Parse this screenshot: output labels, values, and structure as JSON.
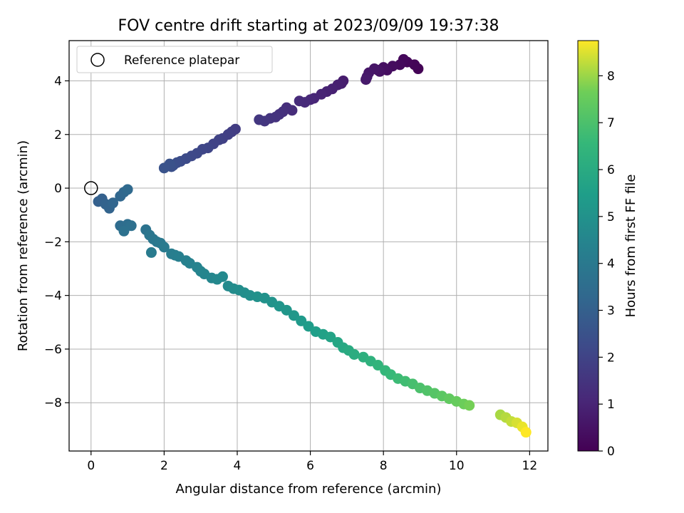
{
  "chart_data": {
    "type": "scatter",
    "title": "FOV centre drift starting at 2023/09/09 19:37:38",
    "xlabel": "Angular distance from reference (arcmin)",
    "ylabel": "Rotation from reference (arcmin)",
    "xlim": [
      -0.6,
      12.5
    ],
    "ylim": [
      -9.8,
      5.5
    ],
    "xticks": [
      0,
      2,
      4,
      6,
      8,
      10,
      12
    ],
    "yticks": [
      -8,
      -6,
      -4,
      -2,
      0,
      2,
      4
    ],
    "grid": true,
    "legend": {
      "placement": "top-left",
      "entries": [
        "Reference platepar"
      ]
    },
    "reference_point": {
      "x": 0,
      "y": 0,
      "label": "Reference platepar"
    },
    "colorbar": {
      "label": "Hours from first FF file",
      "colormap": "viridis",
      "range": [
        0,
        8.75
      ],
      "ticks": [
        0,
        1,
        2,
        3,
        4,
        5,
        6,
        7,
        8
      ]
    },
    "series": [
      {
        "x": [
          8.95,
          8.85,
          8.65,
          8.55,
          8.45,
          8.25,
          8.1,
          8.0,
          7.9,
          7.85,
          7.75,
          7.6,
          7.55,
          7.52,
          6.9,
          6.85,
          6.75,
          6.6,
          6.45,
          6.3,
          6.1,
          6.0,
          5.85,
          5.7,
          5.5,
          5.35,
          5.25,
          5.15,
          5.05,
          4.9,
          4.75,
          4.6,
          3.95,
          3.85,
          3.75,
          3.6,
          3.5,
          3.35,
          3.2,
          3.05,
          2.9,
          2.75,
          2.6,
          2.45,
          2.35,
          2.25,
          2.2,
          2.15,
          2.0,
          0.2,
          0.3,
          0.4,
          0.5,
          0.6,
          0.8,
          0.9,
          1.0,
          0.8,
          0.9,
          1.0,
          1.1,
          0.9,
          1.5,
          1.6,
          1.7,
          1.8,
          1.9,
          2.0,
          1.65,
          2.2,
          2.3,
          2.4,
          2.6,
          2.7,
          2.9,
          3.0,
          3.1,
          3.3,
          3.45,
          3.6,
          3.75,
          3.9,
          4.05,
          4.2,
          4.35,
          4.55,
          4.75,
          4.95,
          5.15,
          5.35,
          5.55,
          5.75,
          5.95,
          6.15,
          6.35,
          6.55,
          6.75,
          6.9,
          7.05,
          7.2,
          7.45,
          7.65,
          7.85,
          8.05,
          8.2,
          8.4,
          8.6,
          8.8,
          9.0,
          9.2,
          9.4,
          9.6,
          9.8,
          10.0,
          10.2,
          10.35,
          11.2,
          11.35,
          11.5,
          11.65,
          11.8,
          11.9
        ],
        "y": [
          4.45,
          4.6,
          4.7,
          4.8,
          4.6,
          4.55,
          4.4,
          4.5,
          4.35,
          4.4,
          4.45,
          4.3,
          4.15,
          4.05,
          4.0,
          3.9,
          3.85,
          3.7,
          3.6,
          3.5,
          3.35,
          3.3,
          3.2,
          3.25,
          2.9,
          3.0,
          2.85,
          2.75,
          2.65,
          2.6,
          2.5,
          2.55,
          2.2,
          2.1,
          2.0,
          1.85,
          1.8,
          1.65,
          1.5,
          1.45,
          1.3,
          1.2,
          1.1,
          1.0,
          0.95,
          0.85,
          0.8,
          0.9,
          0.75,
          -0.5,
          -0.4,
          -0.6,
          -0.75,
          -0.55,
          -0.3,
          -0.15,
          -0.05,
          -1.4,
          -1.45,
          -1.35,
          -1.4,
          -1.6,
          -1.55,
          -1.75,
          -1.9,
          -2.0,
          -2.05,
          -2.2,
          -2.4,
          -2.45,
          -2.5,
          -2.55,
          -2.7,
          -2.8,
          -2.95,
          -3.1,
          -3.2,
          -3.35,
          -3.4,
          -3.3,
          -3.65,
          -3.75,
          -3.8,
          -3.9,
          -4.0,
          -4.05,
          -4.1,
          -4.25,
          -4.4,
          -4.55,
          -4.75,
          -4.95,
          -5.15,
          -5.35,
          -5.45,
          -5.55,
          -5.75,
          -5.95,
          -6.05,
          -6.2,
          -6.3,
          -6.45,
          -6.6,
          -6.8,
          -6.95,
          -7.1,
          -7.2,
          -7.3,
          -7.45,
          -7.55,
          -7.65,
          -7.75,
          -7.85,
          -7.95,
          -8.05,
          -8.1,
          -8.45,
          -8.55,
          -8.7,
          -8.75,
          -8.9,
          -9.1
        ],
        "hours": [
          0.05,
          0.1,
          0.15,
          0.2,
          0.25,
          0.3,
          0.35,
          0.4,
          0.45,
          0.5,
          0.55,
          0.6,
          0.65,
          0.7,
          0.75,
          0.8,
          0.85,
          0.9,
          0.95,
          1.0,
          1.05,
          1.1,
          1.15,
          1.2,
          1.25,
          1.3,
          1.35,
          1.4,
          1.45,
          1.5,
          1.55,
          1.6,
          1.75,
          1.8,
          1.85,
          1.9,
          1.95,
          2.0,
          2.05,
          2.1,
          2.15,
          2.2,
          2.25,
          2.3,
          2.35,
          2.4,
          2.45,
          2.5,
          2.55,
          3.0,
          3.05,
          3.1,
          3.15,
          3.2,
          3.25,
          3.3,
          3.35,
          3.45,
          3.5,
          3.55,
          3.6,
          3.65,
          3.75,
          3.85,
          3.9,
          3.95,
          4.0,
          4.05,
          4.1,
          4.15,
          4.2,
          4.25,
          4.3,
          4.35,
          4.4,
          4.45,
          4.5,
          4.55,
          4.6,
          4.65,
          4.7,
          4.75,
          4.8,
          4.85,
          4.9,
          4.95,
          5.0,
          5.05,
          5.1,
          5.15,
          5.2,
          5.3,
          5.4,
          5.5,
          5.6,
          5.7,
          5.8,
          5.9,
          6.0,
          6.1,
          6.2,
          6.3,
          6.4,
          6.5,
          6.6,
          6.7,
          6.8,
          6.9,
          7.0,
          7.1,
          7.2,
          7.3,
          7.4,
          7.5,
          7.6,
          7.7,
          8.1,
          8.2,
          8.3,
          8.45,
          8.6,
          8.75
        ]
      }
    ]
  }
}
